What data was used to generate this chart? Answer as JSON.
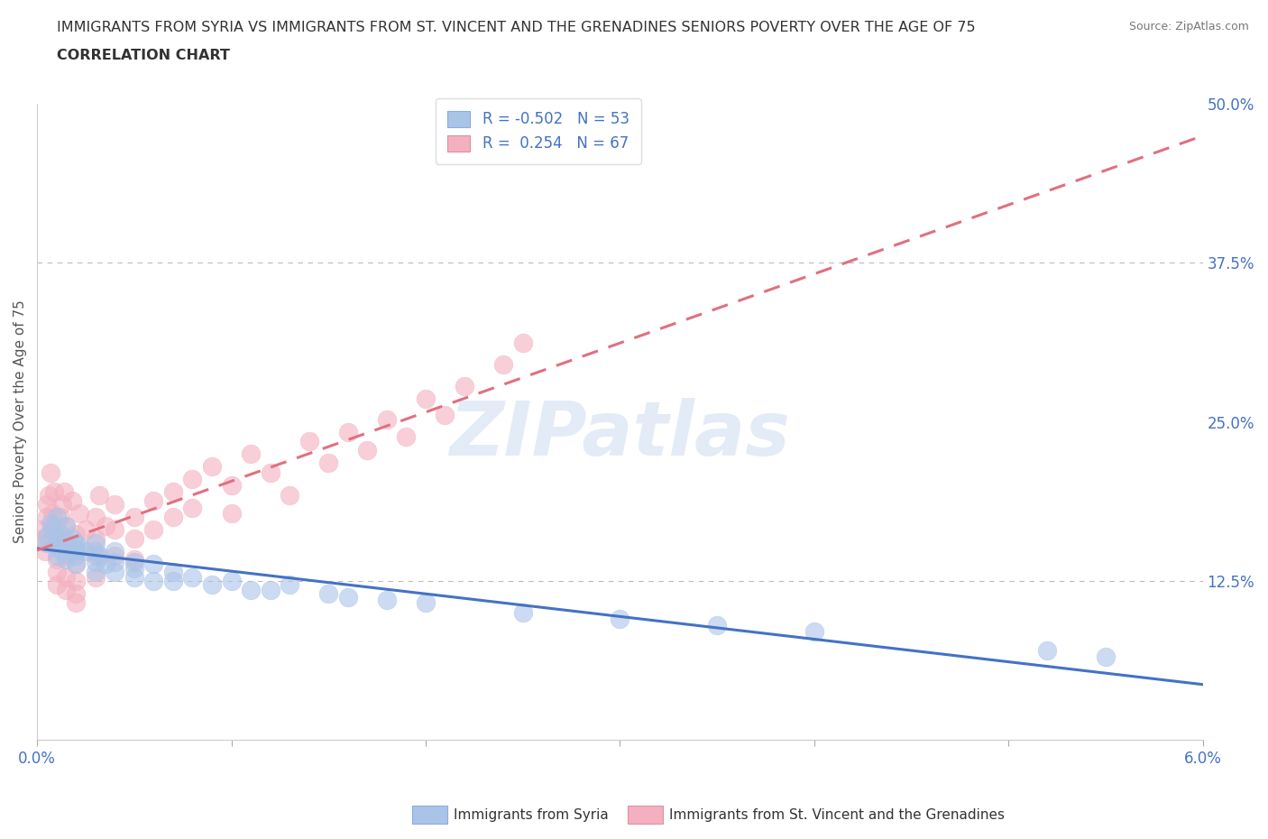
{
  "title_line1": "IMMIGRANTS FROM SYRIA VS IMMIGRANTS FROM ST. VINCENT AND THE GRENADINES SENIORS POVERTY OVER THE AGE OF 75",
  "title_line2": "CORRELATION CHART",
  "source_text": "Source: ZipAtlas.com",
  "ylabel": "Seniors Poverty Over the Age of 75",
  "xlim": [
    0.0,
    0.06
  ],
  "ylim": [
    0.0,
    0.5
  ],
  "xticks": [
    0.0,
    0.01,
    0.02,
    0.03,
    0.04,
    0.05,
    0.06
  ],
  "xticklabels": [
    "0.0%",
    "",
    "",
    "",
    "",
    "",
    "6.0%"
  ],
  "ytick_positions": [
    0.0,
    0.125,
    0.25,
    0.375,
    0.5
  ],
  "ytick_labels": [
    "",
    "12.5%",
    "25.0%",
    "37.5%",
    "50.0%"
  ],
  "dashed_line_y1": 0.375,
  "dashed_line_y2": 0.125,
  "syria_color": "#aac4e8",
  "syria_edge": "#aac4e8",
  "svg_color": "#f4b0c0",
  "svg_edge": "#f4b0c0",
  "syria_R": -0.502,
  "syria_N": 53,
  "svg_R": 0.254,
  "svg_N": 67,
  "legend_label_syria": "Immigrants from Syria",
  "legend_label_svg": "Immigrants from St. Vincent and the Grenadines",
  "watermark": "ZIPatlas",
  "background_color": "#ffffff",
  "syria_scatter_x": [
    0.0005,
    0.0005,
    0.0007,
    0.0008,
    0.001,
    0.001,
    0.001,
    0.001,
    0.0012,
    0.0013,
    0.0015,
    0.0015,
    0.0015,
    0.0018,
    0.002,
    0.002,
    0.002,
    0.002,
    0.002,
    0.0022,
    0.0025,
    0.003,
    0.003,
    0.003,
    0.003,
    0.0032,
    0.0035,
    0.004,
    0.004,
    0.004,
    0.005,
    0.005,
    0.005,
    0.006,
    0.006,
    0.007,
    0.007,
    0.008,
    0.009,
    0.01,
    0.011,
    0.012,
    0.013,
    0.015,
    0.016,
    0.018,
    0.02,
    0.025,
    0.03,
    0.035,
    0.04,
    0.052,
    0.055
  ],
  "syria_scatter_y": [
    0.16,
    0.155,
    0.17,
    0.165,
    0.175,
    0.158,
    0.152,
    0.145,
    0.162,
    0.148,
    0.168,
    0.155,
    0.142,
    0.158,
    0.15,
    0.148,
    0.155,
    0.145,
    0.138,
    0.152,
    0.148,
    0.155,
    0.148,
    0.14,
    0.132,
    0.145,
    0.138,
    0.148,
    0.14,
    0.132,
    0.14,
    0.135,
    0.128,
    0.138,
    0.125,
    0.132,
    0.125,
    0.128,
    0.122,
    0.125,
    0.118,
    0.118,
    0.122,
    0.115,
    0.112,
    0.11,
    0.108,
    0.1,
    0.095,
    0.09,
    0.085,
    0.07,
    0.065
  ],
  "svincent_scatter_x": [
    0.0002,
    0.0003,
    0.0004,
    0.0005,
    0.0005,
    0.0006,
    0.0007,
    0.0008,
    0.0008,
    0.0009,
    0.001,
    0.001,
    0.001,
    0.001,
    0.001,
    0.0012,
    0.0012,
    0.0013,
    0.0014,
    0.0015,
    0.0015,
    0.0015,
    0.0015,
    0.0018,
    0.002,
    0.002,
    0.002,
    0.002,
    0.002,
    0.002,
    0.0022,
    0.0025,
    0.003,
    0.003,
    0.003,
    0.003,
    0.0032,
    0.0035,
    0.004,
    0.004,
    0.004,
    0.005,
    0.005,
    0.005,
    0.006,
    0.006,
    0.007,
    0.007,
    0.008,
    0.008,
    0.009,
    0.01,
    0.01,
    0.011,
    0.012,
    0.013,
    0.014,
    0.015,
    0.016,
    0.017,
    0.018,
    0.019,
    0.02,
    0.021,
    0.022,
    0.024,
    0.025
  ],
  "svincent_scatter_y": [
    0.165,
    0.158,
    0.148,
    0.185,
    0.175,
    0.192,
    0.21,
    0.168,
    0.178,
    0.195,
    0.155,
    0.165,
    0.142,
    0.132,
    0.122,
    0.175,
    0.158,
    0.185,
    0.195,
    0.168,
    0.145,
    0.128,
    0.118,
    0.188,
    0.162,
    0.148,
    0.138,
    0.125,
    0.115,
    0.108,
    0.178,
    0.165,
    0.175,
    0.158,
    0.145,
    0.128,
    0.192,
    0.168,
    0.185,
    0.165,
    0.145,
    0.175,
    0.158,
    0.142,
    0.188,
    0.165,
    0.195,
    0.175,
    0.205,
    0.182,
    0.215,
    0.2,
    0.178,
    0.225,
    0.21,
    0.192,
    0.235,
    0.218,
    0.242,
    0.228,
    0.252,
    0.238,
    0.268,
    0.255,
    0.278,
    0.295,
    0.312
  ],
  "trend_color_syria": "#4472c4",
  "trend_color_svg": "#e07080",
  "trend_x_start": 0.0,
  "trend_x_end": 0.06
}
